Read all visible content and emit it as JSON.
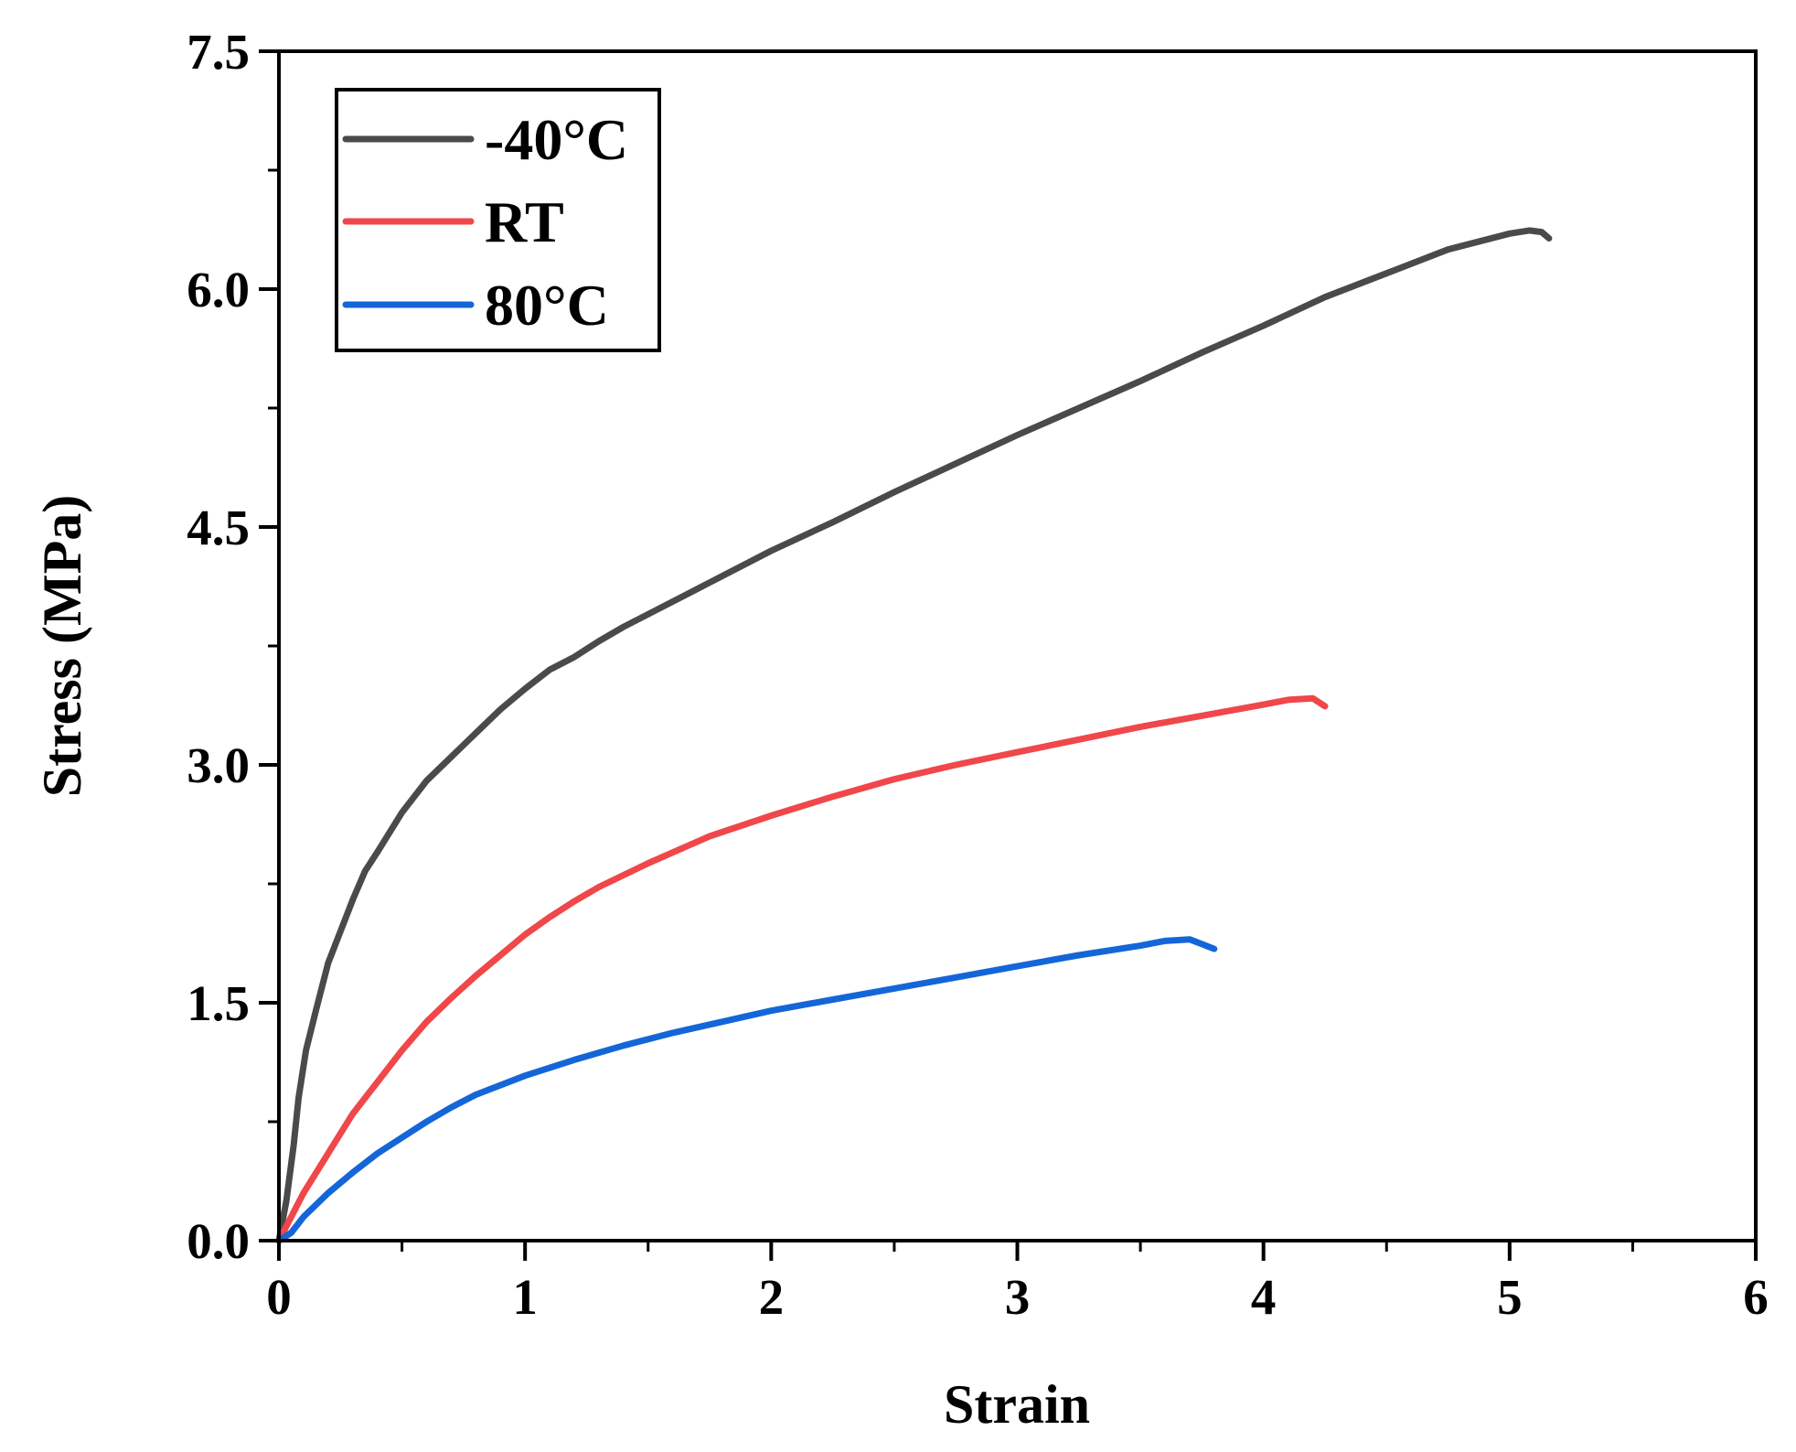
{
  "chart_data": {
    "type": "line",
    "title": "",
    "xlabel": "Strain",
    "ylabel": "Stress (MPa)",
    "xlim": [
      0,
      6
    ],
    "ylim": [
      0,
      7.5
    ],
    "xticks": [
      0,
      1,
      2,
      3,
      4,
      5,
      6
    ],
    "xtick_labels": [
      "0",
      "1",
      "2",
      "3",
      "4",
      "5",
      "6"
    ],
    "yticks": [
      0,
      1.5,
      3.0,
      4.5,
      6.0,
      7.5
    ],
    "ytick_labels": [
      "0.0",
      "1.5",
      "3.0",
      "4.5",
      "6.0",
      "7.5"
    ],
    "grid": false,
    "legend_position": "top-left",
    "series": [
      {
        "name": "-40°C",
        "color": "#4a4a4a",
        "points": [
          [
            0,
            0
          ],
          [
            0.03,
            0.25
          ],
          [
            0.06,
            0.6
          ],
          [
            0.08,
            0.9
          ],
          [
            0.11,
            1.2
          ],
          [
            0.15,
            1.45
          ],
          [
            0.2,
            1.75
          ],
          [
            0.25,
            1.95
          ],
          [
            0.3,
            2.15
          ],
          [
            0.35,
            2.33
          ],
          [
            0.4,
            2.45
          ],
          [
            0.5,
            2.7
          ],
          [
            0.6,
            2.9
          ],
          [
            0.7,
            3.05
          ],
          [
            0.8,
            3.2
          ],
          [
            0.9,
            3.35
          ],
          [
            1.0,
            3.48
          ],
          [
            1.1,
            3.6
          ],
          [
            1.2,
            3.68
          ],
          [
            1.3,
            3.78
          ],
          [
            1.4,
            3.87
          ],
          [
            1.5,
            3.95
          ],
          [
            1.75,
            4.15
          ],
          [
            2.0,
            4.35
          ],
          [
            2.25,
            4.53
          ],
          [
            2.5,
            4.72
          ],
          [
            2.75,
            4.9
          ],
          [
            3.0,
            5.08
          ],
          [
            3.25,
            5.25
          ],
          [
            3.5,
            5.42
          ],
          [
            3.75,
            5.6
          ],
          [
            4.0,
            5.77
          ],
          [
            4.25,
            5.95
          ],
          [
            4.5,
            6.1
          ],
          [
            4.75,
            6.25
          ],
          [
            5.0,
            6.35
          ],
          [
            5.08,
            6.37
          ],
          [
            5.13,
            6.36
          ],
          [
            5.16,
            6.32
          ]
        ]
      },
      {
        "name": "RT",
        "color": "#f0474a",
        "points": [
          [
            0,
            0
          ],
          [
            0.1,
            0.3
          ],
          [
            0.2,
            0.55
          ],
          [
            0.3,
            0.8
          ],
          [
            0.4,
            1.0
          ],
          [
            0.5,
            1.2
          ],
          [
            0.6,
            1.38
          ],
          [
            0.7,
            1.53
          ],
          [
            0.8,
            1.67
          ],
          [
            0.9,
            1.8
          ],
          [
            1.0,
            1.93
          ],
          [
            1.1,
            2.04
          ],
          [
            1.2,
            2.14
          ],
          [
            1.3,
            2.23
          ],
          [
            1.5,
            2.38
          ],
          [
            1.75,
            2.55
          ],
          [
            2.0,
            2.68
          ],
          [
            2.25,
            2.8
          ],
          [
            2.5,
            2.91
          ],
          [
            2.75,
            3.0
          ],
          [
            3.0,
            3.08
          ],
          [
            3.25,
            3.16
          ],
          [
            3.5,
            3.24
          ],
          [
            3.75,
            3.31
          ],
          [
            4.0,
            3.38
          ],
          [
            4.1,
            3.41
          ],
          [
            4.2,
            3.42
          ],
          [
            4.25,
            3.37
          ]
        ]
      },
      {
        "name": "80°C",
        "color": "#1466d8",
        "points": [
          [
            0,
            0
          ],
          [
            0.05,
            0.05
          ],
          [
            0.1,
            0.15
          ],
          [
            0.2,
            0.3
          ],
          [
            0.3,
            0.43
          ],
          [
            0.4,
            0.55
          ],
          [
            0.5,
            0.65
          ],
          [
            0.6,
            0.75
          ],
          [
            0.7,
            0.84
          ],
          [
            0.8,
            0.92
          ],
          [
            1.0,
            1.04
          ],
          [
            1.2,
            1.14
          ],
          [
            1.4,
            1.23
          ],
          [
            1.6,
            1.31
          ],
          [
            1.8,
            1.38
          ],
          [
            2.0,
            1.45
          ],
          [
            2.25,
            1.52
          ],
          [
            2.5,
            1.59
          ],
          [
            2.75,
            1.66
          ],
          [
            3.0,
            1.73
          ],
          [
            3.25,
            1.8
          ],
          [
            3.5,
            1.86
          ],
          [
            3.6,
            1.89
          ],
          [
            3.7,
            1.9
          ],
          [
            3.75,
            1.87
          ],
          [
            3.8,
            1.84
          ]
        ]
      }
    ]
  }
}
